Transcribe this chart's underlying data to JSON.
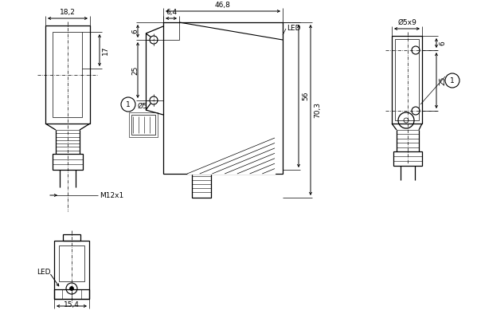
{
  "bg_color": "#ffffff",
  "lc": "#000000",
  "annotations": {
    "dim_18_2": "18,2",
    "dim_17": "17",
    "dim_M12x1": "M12x1",
    "dim_46_8": "46,8",
    "dim_6_4": "6,4",
    "dim_6_left": "6",
    "dim_25_left": "25",
    "dim_56": "56",
    "dim_70_3": "70,3",
    "dim_d5": "Ø5",
    "dim_6_right": "6",
    "dim_25_right": "25",
    "dim_d5x9": "Ø5x9",
    "label_LED_top": "LED",
    "label_LED_bot": "LED",
    "dim_15_4": "15,4"
  }
}
